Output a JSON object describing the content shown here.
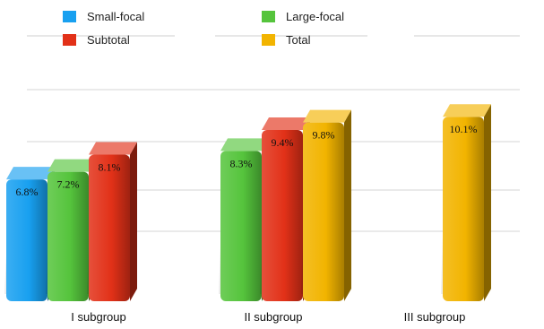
{
  "chart_data": {
    "type": "bar",
    "style": "3d",
    "categories": [
      "I subgroup",
      "II subgroup",
      "III subgroup"
    ],
    "series": [
      {
        "name": "Small-focal",
        "color": "#18a0f0",
        "values": [
          6.8,
          null,
          null
        ]
      },
      {
        "name": "Large-focal",
        "color": "#55c43c",
        "values": [
          7.2,
          8.3,
          null
        ]
      },
      {
        "name": "Subtotal",
        "color": "#e23118",
        "values": [
          8.1,
          9.4,
          null
        ]
      },
      {
        "name": "Total",
        "color": "#f2b400",
        "values": [
          null,
          9.8,
          10.1
        ]
      }
    ],
    "value_labels": {
      "s0_c0": "6.8%",
      "s1_c0": "7.2%",
      "s2_c0": "8.1%",
      "s1_c1": "8.3%",
      "s2_c1": "9.4%",
      "s3_c1": "9.8%",
      "s3_c2": "10.1%"
    },
    "legend_position": "top",
    "grid": true,
    "ylim": [
      0,
      12
    ]
  }
}
